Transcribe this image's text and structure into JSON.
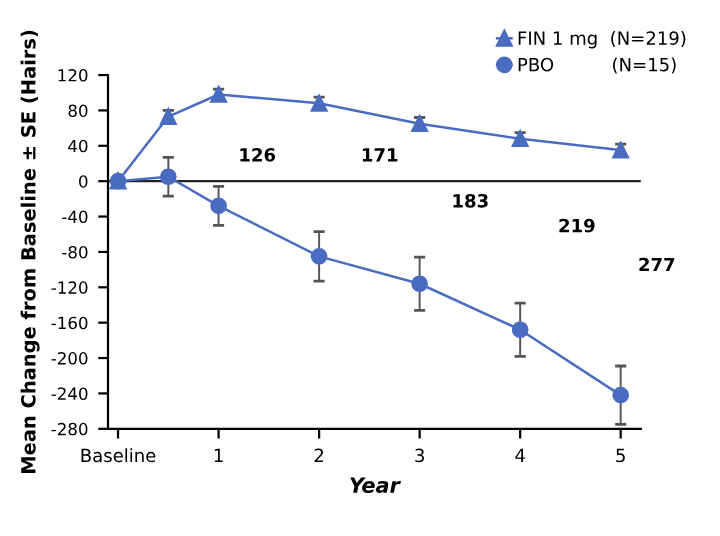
{
  "chart_data": {
    "type": "line",
    "xlabel": "Year",
    "ylabel": "Mean Change from Baseline ± SE (Hairs)",
    "x": [
      0,
      0.5,
      1,
      2,
      3,
      4,
      5
    ],
    "series": [
      {
        "name": "FIN 1 mg  (N=219)",
        "color": "#4a6cc0",
        "marker": "triangle",
        "values": [
          0,
          73,
          98,
          88,
          65,
          48,
          35
        ],
        "errors": [
          null,
          7,
          6,
          7,
          7,
          7,
          7
        ]
      },
      {
        "name": "PBO          (N=15)",
        "color": "#4a6cc0",
        "marker": "circle",
        "values": [
          0,
          5,
          -28,
          -85,
          -116,
          -168,
          -242
        ],
        "errors": [
          null,
          22,
          22,
          28,
          30,
          30,
          33
        ]
      }
    ],
    "xlim": [
      -0.1,
      5.2
    ],
    "xticks": [
      {
        "value": 0,
        "label": "Baseline"
      },
      1,
      2,
      3,
      4,
      5
    ],
    "ylim": [
      -280,
      120
    ],
    "yticks": [
      -280,
      -240,
      -200,
      -160,
      -120,
      -80,
      -40,
      0,
      40,
      80,
      120
    ],
    "ref_lines": [
      {
        "axis": "y",
        "value": 0,
        "color": "#222222"
      }
    ],
    "annotations": [
      "126",
      "171",
      "183",
      "219",
      "277"
    ],
    "grid": false,
    "legend": "top right"
  }
}
